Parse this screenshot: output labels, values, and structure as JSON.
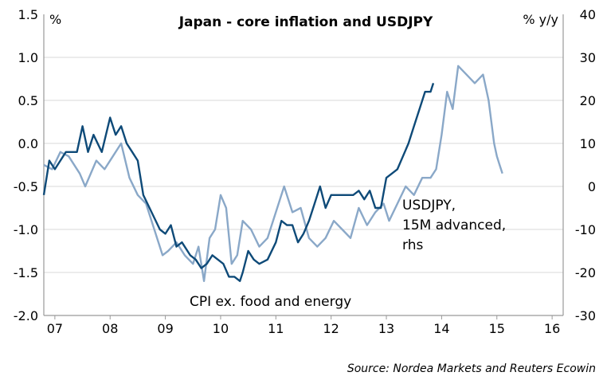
{
  "chart_data": {
    "type": "line",
    "title": "Japan - core inflation and USDJPY",
    "left_axis": {
      "unit": "%",
      "ylim": [
        -2.0,
        1.5
      ],
      "ticks": [
        "1.5",
        "1.0",
        "0.5",
        "0.0",
        "-0.5",
        "-1.0",
        "-1.5",
        "-2.0"
      ]
    },
    "right_axis": {
      "unit": "% y/y",
      "ylim": [
        -30,
        40
      ],
      "ticks": [
        "40",
        "30",
        "20",
        "10",
        "0",
        "-10",
        "-20",
        "-30"
      ]
    },
    "x_axis": {
      "range": [
        2006.8,
        2016.2
      ],
      "ticks": [
        {
          "label": "07",
          "year": 2007.0
        },
        {
          "label": "08",
          "year": 2008.0
        },
        {
          "label": "09",
          "year": 2009.0
        },
        {
          "label": "10",
          "year": 2010.0
        },
        {
          "label": "11",
          "year": 2011.0
        },
        {
          "label": "12",
          "year": 2012.0
        },
        {
          "label": "13",
          "year": 2013.0
        },
        {
          "label": "14",
          "year": 2014.0
        },
        {
          "label": "15",
          "year": 2015.0
        },
        {
          "label": "16",
          "year": 2016.0
        }
      ]
    },
    "series": [
      {
        "name": "USDJPY, 15M advanced, rhs",
        "axis": "right",
        "color": "#8aa8c8",
        "x": [
          2006.8,
          2006.95,
          2007.1,
          2007.25,
          2007.45,
          2007.55,
          2007.75,
          2007.9,
          2008.05,
          2008.2,
          2008.35,
          2008.5,
          2008.65,
          2008.8,
          2008.95,
          2009.05,
          2009.2,
          2009.35,
          2009.5,
          2009.6,
          2009.7,
          2009.8,
          2009.9,
          2010.0,
          2010.1,
          2010.2,
          2010.3,
          2010.4,
          2010.55,
          2010.7,
          2010.85,
          2011.0,
          2011.15,
          2011.3,
          2011.45,
          2011.6,
          2011.75,
          2011.9,
          2012.05,
          2012.2,
          2012.35,
          2012.5,
          2012.65,
          2012.8,
          2012.95,
          2013.05,
          2013.2,
          2013.35,
          2013.5,
          2013.65,
          2013.8,
          2013.9,
          2014.0,
          2014.1,
          2014.2,
          2014.3,
          2014.45,
          2014.6,
          2014.75,
          2014.85,
          2014.95,
          2015.0,
          2015.05,
          2015.1
        ],
        "y": [
          5,
          4,
          8,
          7,
          3,
          0,
          6,
          4,
          7,
          10,
          2,
          -2,
          -4,
          -10,
          -16,
          -15,
          -13,
          -16,
          -18,
          -14,
          -22,
          -12,
          -10,
          -2,
          -5,
          -18,
          -16,
          -8,
          -10,
          -14,
          -12,
          -6,
          0,
          -6,
          -5,
          -12,
          -14,
          -12,
          -8,
          -10,
          -12,
          -5,
          -9,
          -6,
          -4,
          -8,
          -4,
          0,
          -2,
          2,
          2,
          4,
          12,
          22,
          18,
          28,
          26,
          24,
          26,
          20,
          10,
          7,
          5,
          3
        ]
      },
      {
        "name": "CPI ex. food and energy",
        "axis": "left",
        "color": "#0e4a78",
        "x": [
          2006.8,
          2006.9,
          2007.0,
          2007.2,
          2007.4,
          2007.5,
          2007.6,
          2007.7,
          2007.85,
          2008.0,
          2008.1,
          2008.2,
          2008.3,
          2008.4,
          2008.5,
          2008.6,
          2008.75,
          2008.9,
          2009.0,
          2009.1,
          2009.2,
          2009.3,
          2009.45,
          2009.55,
          2009.65,
          2009.75,
          2009.85,
          2009.95,
          2010.05,
          2010.15,
          2010.25,
          2010.35,
          2010.4,
          2010.5,
          2010.6,
          2010.7,
          2010.85,
          2011.0,
          2011.1,
          2011.2,
          2011.3,
          2011.4,
          2011.5,
          2011.6,
          2011.7,
          2011.8,
          2011.9,
          2012.0,
          2012.1,
          2012.3,
          2012.4,
          2012.5,
          2012.6,
          2012.7,
          2012.8,
          2012.9,
          2013.0,
          2013.1,
          2013.2,
          2013.4,
          2013.5,
          2013.6,
          2013.7,
          2013.8,
          2013.85
        ],
        "y": [
          -0.6,
          -0.2,
          -0.3,
          -0.1,
          -0.1,
          0.2,
          -0.1,
          0.1,
          -0.1,
          0.3,
          0.1,
          0.2,
          0.0,
          -0.1,
          -0.2,
          -0.6,
          -0.8,
          -1.0,
          -1.05,
          -0.95,
          -1.2,
          -1.15,
          -1.3,
          -1.35,
          -1.45,
          -1.4,
          -1.3,
          -1.35,
          -1.4,
          -1.55,
          -1.55,
          -1.6,
          -1.5,
          -1.25,
          -1.35,
          -1.4,
          -1.35,
          -1.15,
          -0.9,
          -0.95,
          -0.95,
          -1.15,
          -1.05,
          -0.9,
          -0.7,
          -0.5,
          -0.75,
          -0.6,
          -0.6,
          -0.6,
          -0.6,
          -0.55,
          -0.65,
          -0.55,
          -0.75,
          -0.75,
          -0.4,
          -0.35,
          -0.3,
          0.0,
          0.2,
          0.4,
          0.6,
          0.6,
          0.7
        ]
      }
    ],
    "annotations": {
      "usdjpy_label": [
        "USDJPY,",
        "15M advanced,",
        "rhs"
      ],
      "cpi_label": "CPI ex. food and energy"
    },
    "source": "Source: Nordea Markets and Reuters Ecowin"
  }
}
